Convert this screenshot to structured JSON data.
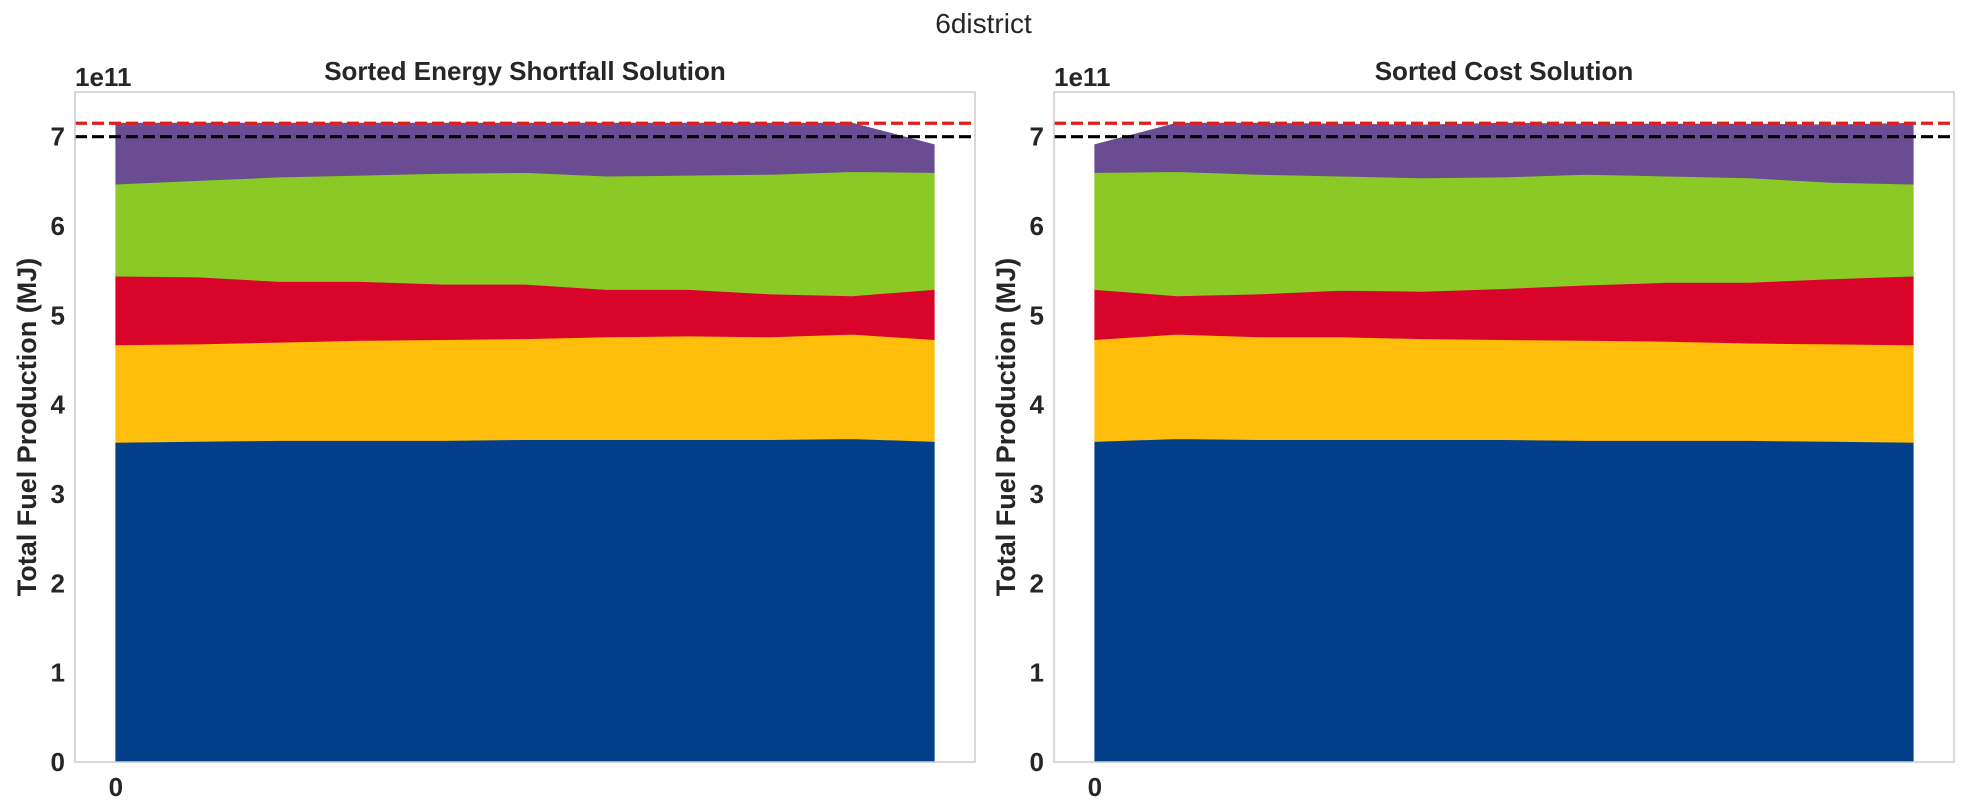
{
  "figure": {
    "suptitle": "6district"
  },
  "chart_data": [
    {
      "type": "area",
      "stacked": true,
      "title": "Sorted Energy Shortfall Solution",
      "ylabel": "Total Fuel Production (MJ)",
      "xlabel": "",
      "offset_text": "1e11",
      "y_scale_factor": 100000000000.0,
      "xlim": [
        -0.5,
        10.5
      ],
      "ylim": [
        0,
        7.5
      ],
      "x_ticks": [
        "0"
      ],
      "y_ticks": [
        "0",
        "1",
        "2",
        "3",
        "4",
        "5",
        "6",
        "7"
      ],
      "grid": false,
      "x": [
        0,
        1,
        2,
        3,
        4,
        5,
        6,
        7,
        8,
        9,
        10
      ],
      "series": [
        {
          "color": "#023e8a",
          "values": [
            3.58,
            3.59,
            3.6,
            3.6,
            3.6,
            3.61,
            3.61,
            3.61,
            3.61,
            3.62,
            3.59
          ]
        },
        {
          "color": "#ffbe0b",
          "values": [
            1.09,
            1.09,
            1.1,
            1.12,
            1.13,
            1.13,
            1.15,
            1.16,
            1.15,
            1.17,
            1.14
          ]
        },
        {
          "color": "#d90429",
          "values": [
            0.77,
            0.75,
            0.68,
            0.66,
            0.62,
            0.61,
            0.53,
            0.52,
            0.48,
            0.43,
            0.56
          ]
        },
        {
          "color": "#8ac926",
          "values": [
            1.03,
            1.08,
            1.17,
            1.19,
            1.24,
            1.25,
            1.27,
            1.28,
            1.34,
            1.39,
            1.31
          ]
        },
        {
          "color": "#6a4c93",
          "values": [
            0.68,
            0.64,
            0.6,
            0.58,
            0.56,
            0.55,
            0.59,
            0.58,
            0.57,
            0.54,
            0.31
          ]
        }
      ],
      "reference_lines": [
        {
          "y": 7.15,
          "color": "#e01e1e",
          "style": "dashed"
        },
        {
          "y": 7.0,
          "color": "#000000",
          "style": "dashed"
        }
      ]
    },
    {
      "type": "area",
      "stacked": true,
      "title": "Sorted Cost Solution",
      "ylabel": "Total Fuel Production (MJ)",
      "xlabel": "",
      "offset_text": "1e11",
      "y_scale_factor": 100000000000.0,
      "xlim": [
        -0.5,
        10.5
      ],
      "ylim": [
        0,
        7.5
      ],
      "x_ticks": [
        "0"
      ],
      "y_ticks": [
        "0",
        "1",
        "2",
        "3",
        "4",
        "5",
        "6",
        "7"
      ],
      "grid": false,
      "x": [
        0,
        1,
        2,
        3,
        4,
        5,
        6,
        7,
        8,
        9,
        10
      ],
      "series": [
        {
          "color": "#023e8a",
          "values": [
            3.59,
            3.62,
            3.61,
            3.61,
            3.61,
            3.61,
            3.6,
            3.6,
            3.6,
            3.59,
            3.58
          ]
        },
        {
          "color": "#ffbe0b",
          "values": [
            1.14,
            1.17,
            1.15,
            1.15,
            1.13,
            1.12,
            1.12,
            1.11,
            1.09,
            1.09,
            1.09
          ]
        },
        {
          "color": "#d90429",
          "values": [
            0.56,
            0.43,
            0.48,
            0.52,
            0.53,
            0.57,
            0.62,
            0.66,
            0.68,
            0.73,
            0.77
          ]
        },
        {
          "color": "#8ac926",
          "values": [
            1.31,
            1.39,
            1.34,
            1.28,
            1.27,
            1.25,
            1.24,
            1.19,
            1.17,
            1.08,
            1.03
          ]
        },
        {
          "color": "#6a4c93",
          "values": [
            0.31,
            0.54,
            0.57,
            0.58,
            0.59,
            0.6,
            0.56,
            0.58,
            0.6,
            0.64,
            0.68
          ]
        }
      ],
      "reference_lines": [
        {
          "y": 7.15,
          "color": "#e01e1e",
          "style": "dashed"
        },
        {
          "y": 7.0,
          "color": "#000000",
          "style": "dashed"
        }
      ]
    }
  ]
}
